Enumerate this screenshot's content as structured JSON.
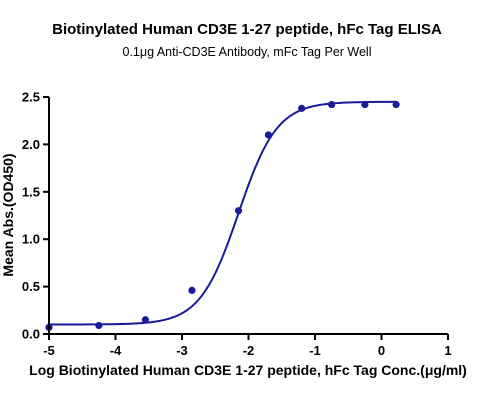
{
  "chart_data": {
    "type": "scatter",
    "title": "Biotinylated Human CD3E 1-27 peptide, hFc Tag ELISA",
    "subtitle": "0.1μg Anti-CD3E Antibody, mFc Tag Per Well",
    "xlabel": "Log Biotinylated Human CD3E 1-27 peptide, hFc Tag Conc.(μg/ml)",
    "ylabel": "Mean Abs.(OD450)",
    "xlim": [
      -5,
      1
    ],
    "ylim": [
      0,
      2.5
    ],
    "x_ticks": [
      "-5",
      "-4",
      "-3",
      "-2",
      "-1",
      "0",
      "1"
    ],
    "y_ticks": [
      "0.0",
      "0.5",
      "1.0",
      "1.5",
      "2.0",
      "2.5"
    ],
    "series": [
      {
        "x": [
          -5.0,
          -4.25,
          -3.55,
          -2.85,
          -2.15,
          -1.7,
          -1.2,
          -0.75,
          -0.25,
          0.22
        ],
        "y": [
          0.07,
          0.09,
          0.15,
          0.46,
          1.3,
          2.1,
          2.38,
          2.42,
          2.42,
          2.42
        ],
        "fit": {
          "bottom": 0.1,
          "top": 2.45,
          "logEC50": -2.15,
          "hill": 1.5
        }
      }
    ],
    "colors": {
      "series": "#1a1a9c",
      "axis": "#000000"
    },
    "grid": false
  }
}
